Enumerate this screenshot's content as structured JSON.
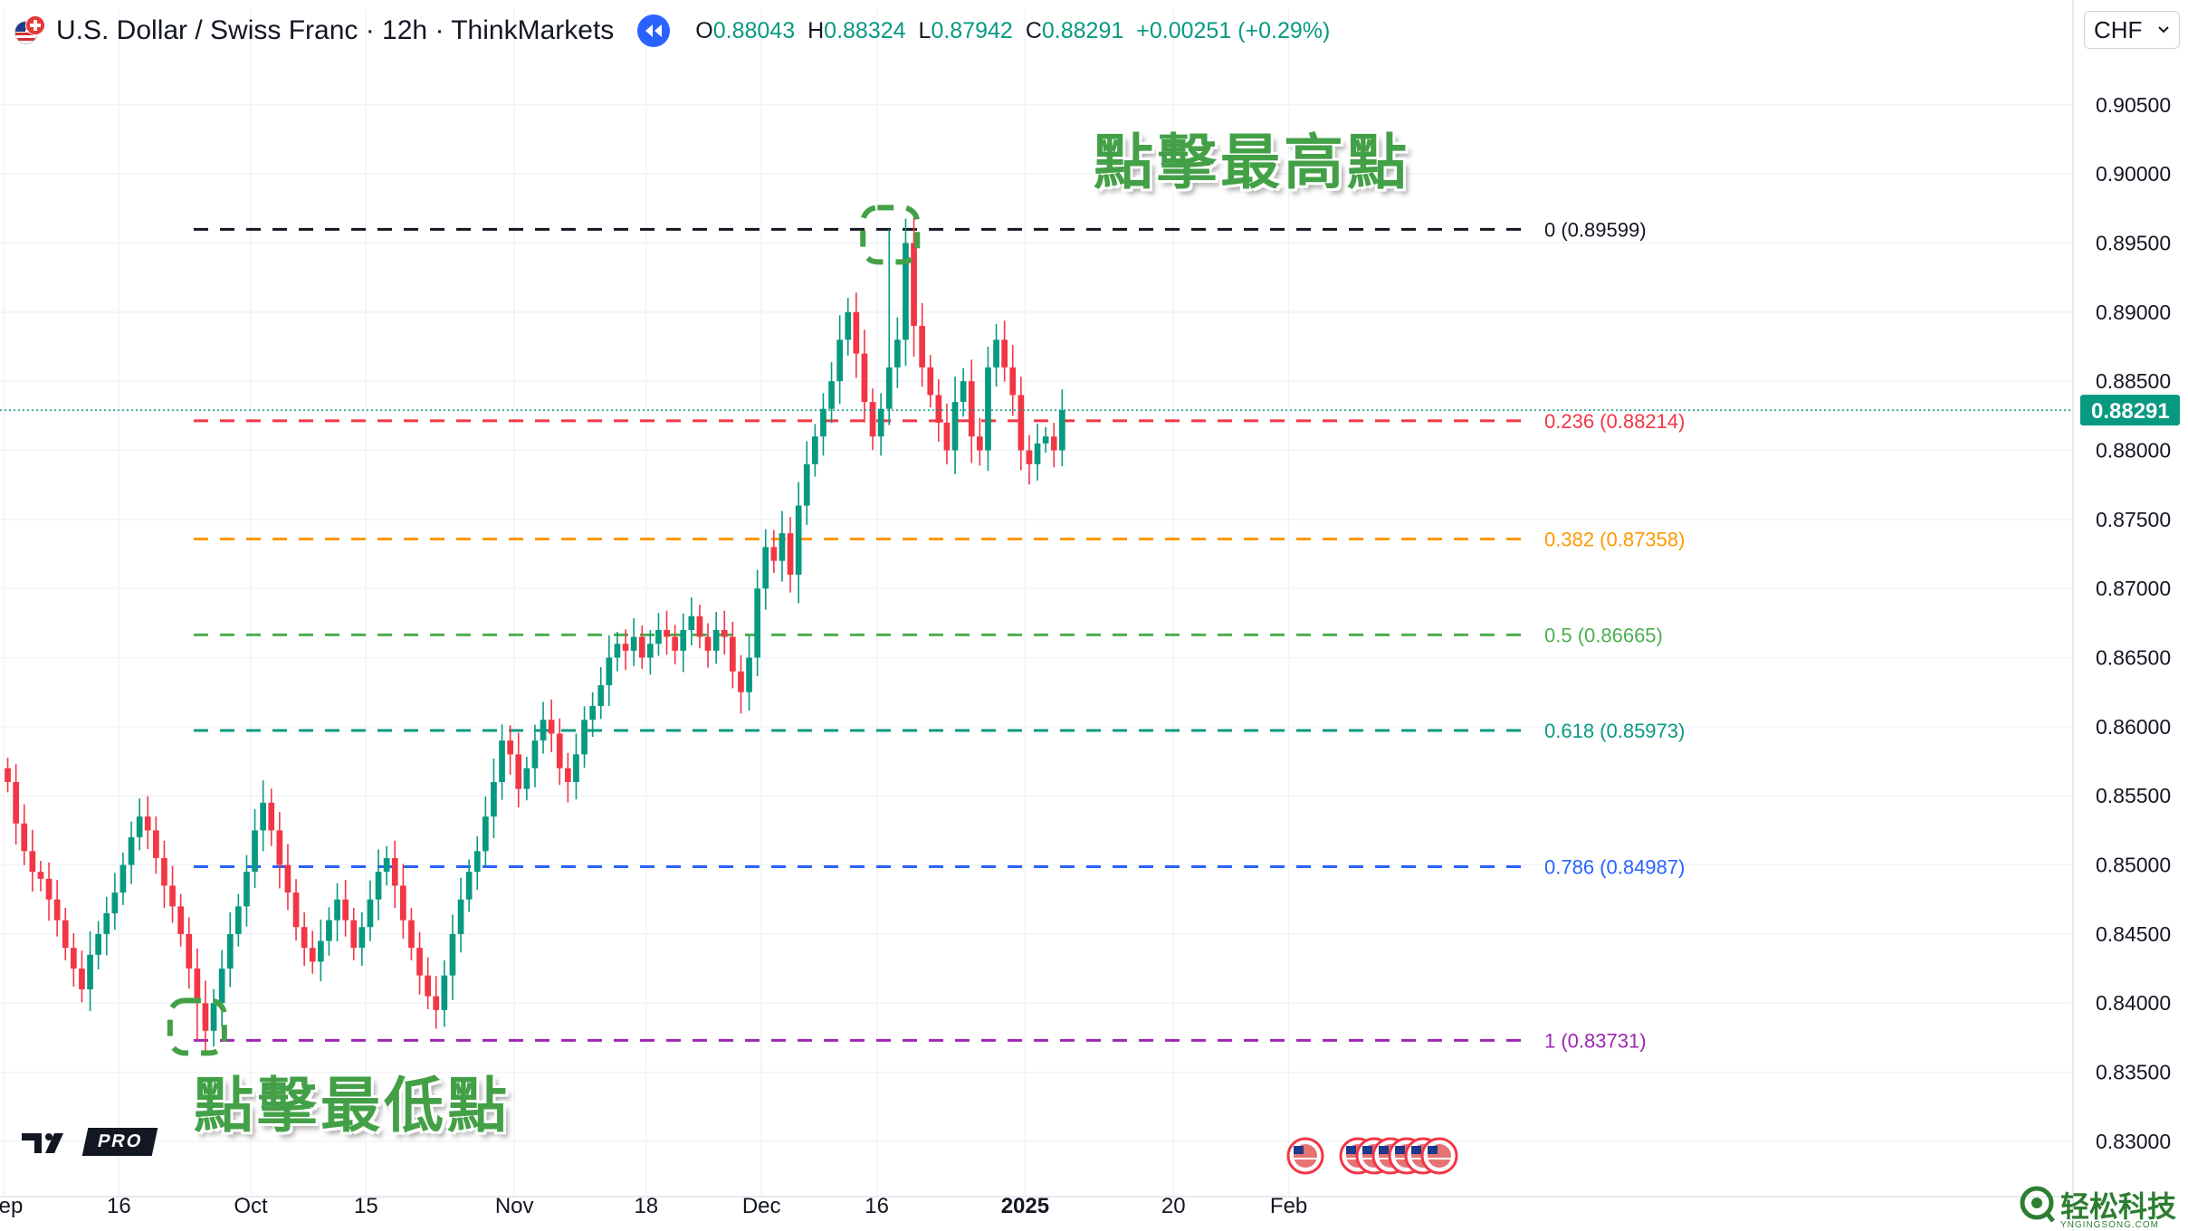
{
  "header": {
    "symbol_title": "U.S. Dollar / Swiss Franc · 12h · ThinkMarkets",
    "ohlc": [
      {
        "key": "O",
        "value": "0.88043"
      },
      {
        "key": "H",
        "value": "0.88324"
      },
      {
        "key": "L",
        "value": "0.87942"
      },
      {
        "key": "C",
        "value": "0.88291"
      }
    ],
    "change": "+0.00251 (+0.29%)"
  },
  "currency": "CHF",
  "logo_text": "PRO",
  "watermark": {
    "text": "轻松科技",
    "sub": "YNGINGSONG.COM"
  },
  "annotations": {
    "high": "點擊最高點",
    "low": "點擊最低點"
  },
  "colors": {
    "up": "#089981",
    "down": "#f23645",
    "last_price_bg": "#089981"
  },
  "chart_data": {
    "type": "candlestick",
    "interval": "12h",
    "y_axis": {
      "min": 0.826,
      "max": 0.908,
      "ticks": [
        "0.90500",
        "0.90000",
        "0.89500",
        "0.89000",
        "0.88500",
        "0.88000",
        "0.87500",
        "0.87000",
        "0.86500",
        "0.86000",
        "0.85500",
        "0.85000",
        "0.84500",
        "0.84000",
        "0.83500",
        "0.83000"
      ]
    },
    "x_axis": {
      "ticks": [
        {
          "label": "Sep",
          "i": 0
        },
        {
          "label": "16",
          "i": 14
        },
        {
          "label": "Oct",
          "i": 30
        },
        {
          "label": "15",
          "i": 44
        },
        {
          "label": "Nov",
          "i": 62
        },
        {
          "label": "18",
          "i": 78
        },
        {
          "label": "Dec",
          "i": 92
        },
        {
          "label": "16",
          "i": 106
        },
        {
          "label": "2025",
          "i": 124
        },
        {
          "label": "20",
          "i": 142
        },
        {
          "label": "Feb",
          "i": 156
        }
      ]
    },
    "last_price": "0.88291",
    "fibonacci": [
      {
        "level": "0",
        "value": 0.89599,
        "label": "0 (0.89599)",
        "color": "#131722"
      },
      {
        "level": "0.236",
        "value": 0.88214,
        "label": "0.236 (0.88214)",
        "color": "#f23645"
      },
      {
        "level": "0.382",
        "value": 0.87358,
        "label": "0.382 (0.87358)",
        "color": "#ff9800"
      },
      {
        "level": "0.5",
        "value": 0.86665,
        "label": "0.5 (0.86665)",
        "color": "#4caf50"
      },
      {
        "level": "0.618",
        "value": 0.85973,
        "label": "0.618 (0.85973)",
        "color": "#089981"
      },
      {
        "level": "0.786",
        "value": 0.84987,
        "label": "0.786 (0.84987)",
        "color": "#2962ff"
      },
      {
        "level": "1",
        "value": 0.83731,
        "label": "1 (0.83731)",
        "color": "#9c27b0"
      }
    ],
    "closes": [
      0.856,
      0.853,
      0.851,
      0.8495,
      0.849,
      0.8475,
      0.846,
      0.844,
      0.8425,
      0.841,
      0.8435,
      0.845,
      0.8465,
      0.848,
      0.85,
      0.852,
      0.8535,
      0.8525,
      0.8505,
      0.8485,
      0.847,
      0.845,
      0.8425,
      0.84,
      0.838,
      0.84,
      0.8425,
      0.845,
      0.847,
      0.8495,
      0.8525,
      0.8545,
      0.8525,
      0.85,
      0.848,
      0.8455,
      0.844,
      0.843,
      0.8445,
      0.846,
      0.8475,
      0.846,
      0.844,
      0.8455,
      0.8475,
      0.8495,
      0.8505,
      0.8485,
      0.846,
      0.844,
      0.842,
      0.8405,
      0.8395,
      0.842,
      0.845,
      0.8475,
      0.8495,
      0.851,
      0.8535,
      0.856,
      0.859,
      0.858,
      0.8555,
      0.857,
      0.859,
      0.8605,
      0.8595,
      0.857,
      0.856,
      0.858,
      0.8605,
      0.8615,
      0.863,
      0.865,
      0.866,
      0.8655,
      0.8665,
      0.865,
      0.866,
      0.867,
      0.8665,
      0.8655,
      0.867,
      0.868,
      0.8665,
      0.8655,
      0.867,
      0.8665,
      0.864,
      0.8625,
      0.865,
      0.87,
      0.873,
      0.872,
      0.874,
      0.871,
      0.876,
      0.879,
      0.881,
      0.883,
      0.885,
      0.888,
      0.89,
      0.887,
      0.8835,
      0.881,
      0.883,
      0.886,
      0.888,
      0.895,
      0.889,
      0.886,
      0.884,
      0.882,
      0.88,
      0.8835,
      0.885,
      0.881,
      0.88,
      0.886,
      0.888,
      0.886,
      0.884,
      0.88,
      0.879,
      0.8805,
      0.881,
      0.88,
      0.8829
    ],
    "pivot_high": {
      "i": 107,
      "value": 0.89599
    },
    "pivot_low": {
      "i": 23,
      "value": 0.83731
    }
  }
}
